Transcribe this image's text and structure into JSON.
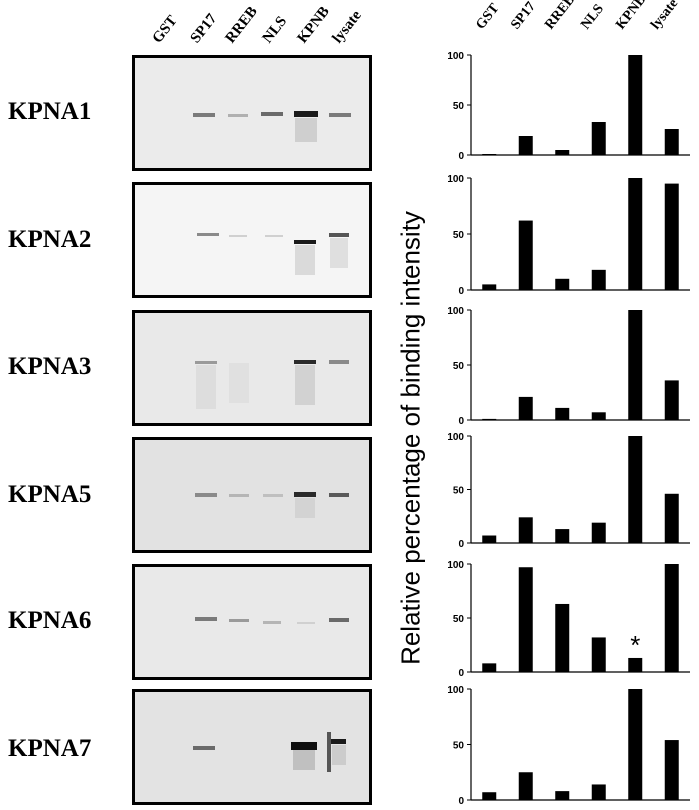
{
  "lanes": [
    "GST",
    "SP17",
    "RREB",
    "NLS",
    "KPNB",
    "lysate"
  ],
  "rows": [
    "KPNA1",
    "KPNA2",
    "KPNA3",
    "KPNA5",
    "KPNA6",
    "KPNA7"
  ],
  "ylabel": "Relative percentage of binding intensity",
  "annotation": "*",
  "chart_data": [
    {
      "type": "bar",
      "label": "KPNA1",
      "categories": [
        "GST",
        "SP17",
        "RREB",
        "NLS",
        "KPNB",
        "lysate"
      ],
      "values": [
        1,
        19,
        5,
        33,
        100,
        26
      ],
      "yticks": [
        0,
        50,
        100
      ],
      "ylim": [
        0,
        100
      ]
    },
    {
      "type": "bar",
      "label": "KPNA2",
      "categories": [
        "GST",
        "SP17",
        "RREB",
        "NLS",
        "KPNB",
        "lysate"
      ],
      "values": [
        5,
        62,
        10,
        18,
        100,
        95
      ],
      "yticks": [
        0,
        50,
        100
      ],
      "ylim": [
        0,
        100
      ]
    },
    {
      "type": "bar",
      "label": "KPNA3",
      "categories": [
        "GST",
        "SP17",
        "RREB",
        "NLS",
        "KPNB",
        "lysate"
      ],
      "values": [
        1,
        21,
        11,
        7,
        100,
        36
      ],
      "yticks": [
        0,
        50,
        100
      ],
      "ylim": [
        0,
        100
      ]
    },
    {
      "type": "bar",
      "label": "KPNA5",
      "categories": [
        "GST",
        "SP17",
        "RREB",
        "NLS",
        "KPNB",
        "lysate"
      ],
      "values": [
        7,
        24,
        13,
        19,
        100,
        46
      ],
      "yticks": [
        0,
        50,
        100
      ],
      "ylim": [
        0,
        100
      ]
    },
    {
      "type": "bar",
      "label": "KPNA6",
      "categories": [
        "GST",
        "SP17",
        "RREB",
        "NLS",
        "KPNB",
        "lysate"
      ],
      "values": [
        8,
        97,
        63,
        32,
        13,
        100
      ],
      "yticks": [
        0,
        50,
        100
      ],
      "ylim": [
        0,
        100
      ],
      "annotation_on": "KPNB"
    },
    {
      "type": "bar",
      "label": "KPNA7",
      "categories": [
        "GST",
        "SP17",
        "RREB",
        "NLS",
        "KPNB",
        "lysate"
      ],
      "values": [
        7,
        25,
        8,
        14,
        100,
        54
      ],
      "yticks": [
        0,
        50,
        100
      ],
      "ylim": [
        0,
        100
      ]
    }
  ]
}
